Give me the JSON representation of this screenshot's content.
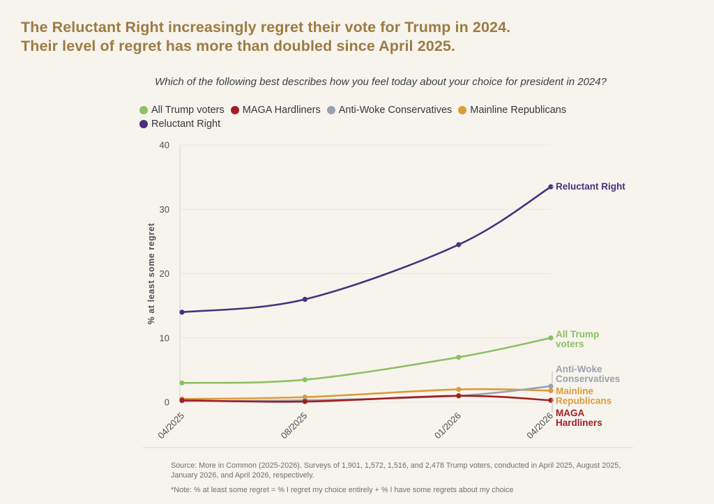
{
  "header": {
    "title_line1": "The Reluctant Right increasingly regret their vote for Trump in 2024.",
    "title_line2": "Their level of regret has more than doubled since April 2025."
  },
  "theme": {
    "background": "#f7f4ee",
    "title_color": "#9d7b42",
    "subtitle_color": "#3d4046",
    "legend_text_color": "#36383d",
    "axis_text_color": "#4c4d52",
    "grid_color": "#e8e5de",
    "axis_line_color": "#d6d3cb",
    "separator_color": "#dcd8d0",
    "footer_text_color": "#6f6f6d",
    "leader_line_color": "#b8bac0"
  },
  "chart_data": {
    "type": "line",
    "title": "Which of the following best describes how you feel today about your choice for president in 2024?",
    "xlabel": "",
    "ylabel": "% at least some regret",
    "ylim": [
      0,
      40
    ],
    "yticks": [
      0,
      10,
      20,
      30,
      40
    ],
    "grid": true,
    "legend_position": "top",
    "x_categories": [
      "04/2025",
      "08/2025",
      "01/2026",
      "04/2026"
    ],
    "x_month_offsets": [
      0,
      4,
      9,
      12
    ],
    "series": [
      {
        "name": "All Trump voters",
        "color": "#8dc063",
        "values": [
          3,
          3.5,
          7,
          10
        ],
        "end_label_lines": [
          "All Trump",
          "voters"
        ],
        "end_label_offset": 2
      },
      {
        "name": "MAGA Hardliners",
        "color": "#a31e23",
        "values": [
          0.3,
          0.1,
          1,
          0.3
        ],
        "end_label_lines": [
          "MAGA",
          "Hardliners"
        ],
        "end_label_offset": 26
      },
      {
        "name": "Anti-Woke Conservatives",
        "color": "#9aa2af",
        "values": [
          0.2,
          0.3,
          1,
          2.5
        ],
        "end_label_lines": [
          "Anti-Woke",
          "Conservatives"
        ],
        "end_label_offset": -17
      },
      {
        "name": "Mainline Republicans",
        "color": "#dd9b3a",
        "values": [
          0.5,
          0.8,
          2,
          1.8
        ],
        "end_label_lines": [
          "Mainline",
          "Republicans"
        ],
        "end_label_offset": 8
      },
      {
        "name": "Reluctant Right",
        "color": "#46327e",
        "values": [
          14,
          16,
          24.5,
          33.5
        ],
        "end_label_lines": [
          "Reluctant Right"
        ],
        "end_label_offset": 0
      }
    ],
    "z_order": [
      "Mainline Republicans",
      "Anti-Woke Conservatives",
      "MAGA Hardliners",
      "All Trump voters",
      "Reluctant Right"
    ]
  },
  "footer": {
    "source": "Source: More in Common (2025-2026). Surveys of 1,901, 1,572, 1,516, and 2,478 Trump voters, conducted in April 2025, August 2025, January 2026, and April 2026, respectively.",
    "note": "*Note: % at least some regret = % I regret my choice entirely + % I have some regrets about my choice"
  }
}
